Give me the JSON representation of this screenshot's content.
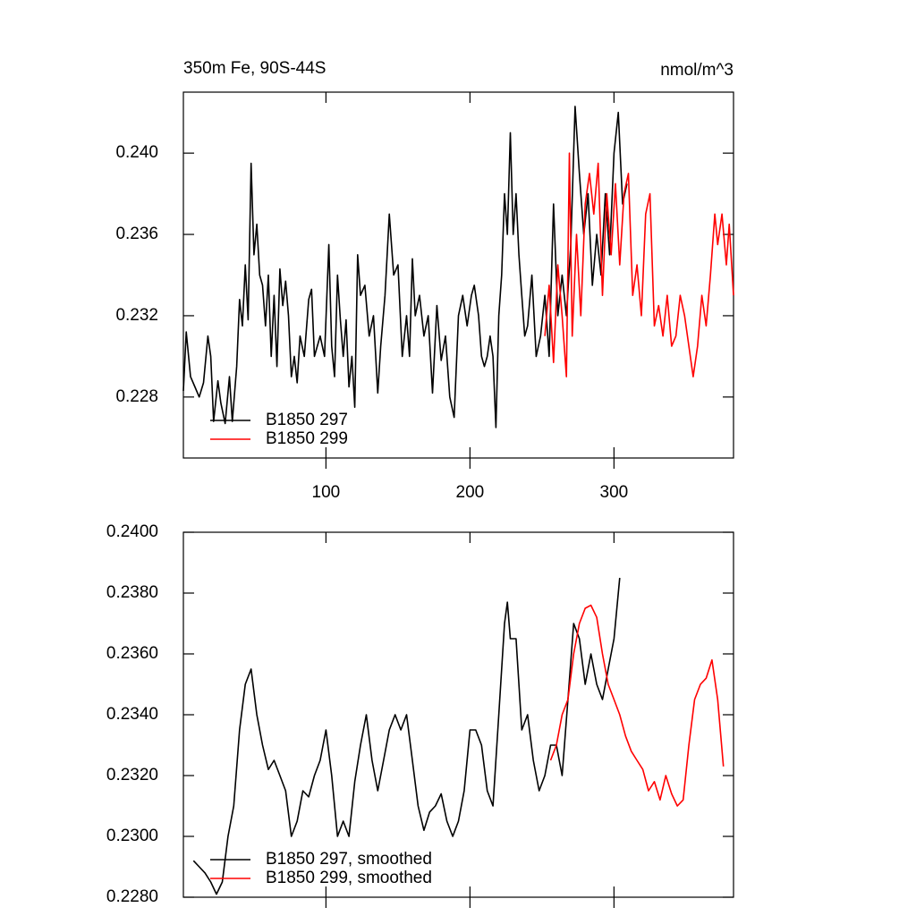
{
  "chart_data": [
    {
      "type": "line",
      "title": "350m Fe, 90S-44S",
      "units": "nmol/m^3",
      "xlim": [
        1,
        383
      ],
      "xticks": [
        100,
        200,
        300
      ],
      "ylim": [
        0.225,
        0.243
      ],
      "yticks": [
        0.228,
        0.232,
        0.236,
        {
          "value": 0.24,
          "label": "0.240"
        }
      ],
      "legend": "lower left",
      "series": [
        {
          "name": "B1850 297",
          "color": "#000000",
          "x": [
            1,
            3,
            6,
            9,
            12,
            15,
            18,
            20,
            22,
            25,
            27,
            30,
            33,
            35,
            38,
            40,
            42,
            44,
            46,
            48,
            50,
            52,
            54,
            56,
            58,
            60,
            62,
            64,
            66,
            68,
            70,
            72,
            74,
            76,
            78,
            80,
            82,
            85,
            88,
            90,
            92,
            94,
            96,
            99,
            102,
            104,
            106,
            108,
            110,
            112,
            114,
            116,
            118,
            120,
            122,
            124,
            127,
            130,
            133,
            136,
            138,
            141,
            144,
            147,
            150,
            153,
            156,
            158,
            160,
            162,
            165,
            168,
            171,
            174,
            177,
            180,
            183,
            186,
            189,
            192,
            195,
            198,
            201,
            203,
            206,
            208,
            210,
            212,
            214,
            216,
            218,
            220,
            222,
            224,
            226,
            228,
            230,
            232,
            234,
            236,
            238,
            240,
            243,
            246,
            249,
            252,
            255,
            258,
            261,
            264,
            267,
            270,
            273,
            276,
            279,
            282,
            285,
            288,
            291,
            294,
            297,
            300,
            303,
            306,
            309
          ],
          "values": [
            0.2283,
            0.2312,
            0.229,
            0.2285,
            0.228,
            0.2287,
            0.231,
            0.23,
            0.2268,
            0.2288,
            0.2277,
            0.2267,
            0.229,
            0.2268,
            0.2295,
            0.2328,
            0.2315,
            0.2345,
            0.2318,
            0.2395,
            0.235,
            0.2365,
            0.234,
            0.2335,
            0.2315,
            0.234,
            0.23,
            0.233,
            0.2295,
            0.2343,
            0.2325,
            0.2337,
            0.232,
            0.229,
            0.23,
            0.2287,
            0.231,
            0.23,
            0.2328,
            0.2333,
            0.23,
            0.2305,
            0.231,
            0.23,
            0.2355,
            0.2305,
            0.229,
            0.234,
            0.2318,
            0.23,
            0.2318,
            0.2285,
            0.23,
            0.2275,
            0.235,
            0.233,
            0.2335,
            0.231,
            0.232,
            0.2282,
            0.2305,
            0.233,
            0.237,
            0.234,
            0.2345,
            0.23,
            0.232,
            0.23,
            0.2348,
            0.232,
            0.233,
            0.231,
            0.232,
            0.2282,
            0.2325,
            0.2298,
            0.231,
            0.228,
            0.227,
            0.232,
            0.233,
            0.2315,
            0.233,
            0.2335,
            0.232,
            0.23,
            0.2295,
            0.23,
            0.231,
            0.23,
            0.2265,
            0.232,
            0.234,
            0.238,
            0.236,
            0.241,
            0.236,
            0.238,
            0.235,
            0.233,
            0.231,
            0.2315,
            0.234,
            0.23,
            0.231,
            0.233,
            0.23,
            0.2375,
            0.232,
            0.234,
            0.232,
            0.2355,
            0.2423,
            0.239,
            0.236,
            0.238,
            0.2335,
            0.236,
            0.234,
            0.238,
            0.235,
            0.24,
            0.242,
            0.2375,
            0.2385
          ]
        },
        {
          "name": "B1850 299",
          "color": "#ff0000",
          "x": [
            252,
            255,
            258,
            261,
            264,
            267,
            269,
            271,
            274,
            277,
            280,
            283,
            286,
            289,
            292,
            295,
            298,
            301,
            304,
            307,
            310,
            313,
            316,
            319,
            322,
            325,
            328,
            331,
            334,
            337,
            340,
            343,
            346,
            349,
            352,
            355,
            358,
            361,
            364,
            367,
            370,
            372,
            375,
            378,
            380,
            383
          ],
          "values": [
            0.231,
            0.2335,
            0.2297,
            0.2345,
            0.232,
            0.229,
            0.24,
            0.231,
            0.236,
            0.232,
            0.2375,
            0.239,
            0.237,
            0.2395,
            0.233,
            0.238,
            0.235,
            0.2385,
            0.2345,
            0.238,
            0.239,
            0.233,
            0.2345,
            0.232,
            0.237,
            0.238,
            0.2315,
            0.2325,
            0.231,
            0.233,
            0.2305,
            0.231,
            0.233,
            0.232,
            0.2305,
            0.229,
            0.2305,
            0.233,
            0.2315,
            0.234,
            0.237,
            0.2355,
            0.237,
            0.2345,
            0.2365,
            0.233
          ]
        }
      ]
    },
    {
      "type": "line",
      "xlim": [
        1,
        383
      ],
      "xticks": [
        100,
        200,
        300
      ],
      "ylim": [
        0.228,
        0.24
      ],
      "yticks": [
        {
          "value": 0.228,
          "label": "0.2280"
        },
        {
          "value": 0.23,
          "label": "0.2300"
        },
        {
          "value": 0.232,
          "label": "0.2320"
        },
        {
          "value": 0.234,
          "label": "0.2340"
        },
        {
          "value": 0.236,
          "label": "0.2360"
        },
        {
          "value": 0.238,
          "label": "0.2380"
        },
        {
          "value": 0.24,
          "label": "0.2400"
        }
      ],
      "legend": "lower left",
      "series": [
        {
          "name": "B1850 297, smoothed",
          "color": "#000000",
          "x": [
            8,
            12,
            16,
            20,
            24,
            28,
            32,
            36,
            40,
            44,
            48,
            52,
            56,
            60,
            64,
            68,
            72,
            76,
            80,
            84,
            88,
            92,
            96,
            100,
            104,
            108,
            112,
            116,
            120,
            124,
            128,
            132,
            136,
            140,
            144,
            148,
            152,
            156,
            160,
            164,
            168,
            172,
            176,
            180,
            184,
            188,
            192,
            196,
            200,
            204,
            208,
            212,
            216,
            220,
            224,
            226,
            228,
            232,
            236,
            240,
            244,
            248,
            252,
            256,
            260,
            264,
            268,
            272,
            276,
            280,
            284,
            288,
            292,
            296,
            300,
            304
          ],
          "values": [
            0.2292,
            0.229,
            0.2288,
            0.2285,
            0.2281,
            0.2285,
            0.23,
            0.231,
            0.2335,
            0.235,
            0.2355,
            0.234,
            0.233,
            0.2322,
            0.2325,
            0.232,
            0.2315,
            0.23,
            0.2305,
            0.2315,
            0.2313,
            0.232,
            0.2325,
            0.2335,
            0.232,
            0.23,
            0.2305,
            0.23,
            0.2318,
            0.233,
            0.234,
            0.2325,
            0.2315,
            0.2325,
            0.2335,
            0.234,
            0.2335,
            0.234,
            0.2325,
            0.231,
            0.2302,
            0.2308,
            0.231,
            0.2314,
            0.2305,
            0.23,
            0.2305,
            0.2315,
            0.2335,
            0.2335,
            0.233,
            0.2315,
            0.231,
            0.234,
            0.237,
            0.2377,
            0.2365,
            0.2365,
            0.2335,
            0.234,
            0.2325,
            0.2315,
            0.232,
            0.233,
            0.233,
            0.232,
            0.2345,
            0.237,
            0.2365,
            0.235,
            0.236,
            0.235,
            0.2345,
            0.2355,
            0.2365,
            0.2385
          ]
        },
        {
          "name": "B1850 299, smoothed",
          "color": "#ff0000",
          "x": [
            256,
            260,
            264,
            268,
            272,
            276,
            280,
            284,
            288,
            292,
            296,
            300,
            304,
            308,
            312,
            316,
            320,
            324,
            328,
            332,
            336,
            340,
            344,
            348,
            352,
            356,
            360,
            364,
            368,
            372,
            376
          ],
          "values": [
            0.2325,
            0.233,
            0.234,
            0.2345,
            0.236,
            0.237,
            0.2375,
            0.2376,
            0.2372,
            0.236,
            0.235,
            0.2345,
            0.234,
            0.2333,
            0.2328,
            0.2325,
            0.2322,
            0.2315,
            0.2318,
            0.2312,
            0.232,
            0.2314,
            0.231,
            0.2312,
            0.233,
            0.2345,
            0.235,
            0.2352,
            0.2358,
            0.2345,
            0.2323
          ]
        }
      ]
    }
  ]
}
